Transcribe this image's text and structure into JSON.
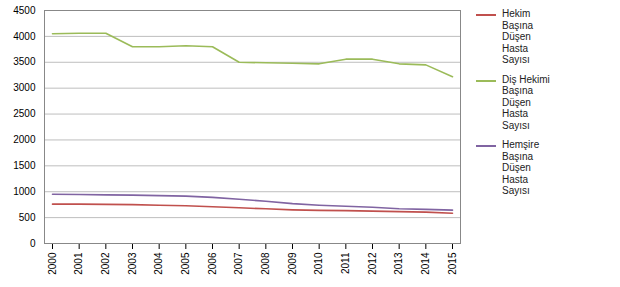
{
  "chart_data": {
    "type": "line",
    "x": [
      2000,
      2001,
      2002,
      2003,
      2004,
      2005,
      2006,
      2007,
      2008,
      2009,
      2010,
      2011,
      2012,
      2013,
      2014,
      2015
    ],
    "series": [
      {
        "name": "Hekim\nBaşına\nDüşen\nHasta\nSayısı",
        "color": "#c0504d",
        "values": [
          760,
          760,
          755,
          750,
          740,
          730,
          710,
          690,
          670,
          650,
          640,
          635,
          625,
          615,
          605,
          585
        ]
      },
      {
        "name": "Diş Hekimi\nBaşına\nDüşen\nHasta\nSayısı",
        "color": "#9bbb59",
        "values": [
          4050,
          4060,
          4060,
          3800,
          3800,
          3820,
          3800,
          3500,
          3490,
          3480,
          3470,
          3560,
          3560,
          3470,
          3450,
          3220
        ]
      },
      {
        "name": "Hemşire\nBaşına\nDüşen\nHasta\nSayısı",
        "color": "#8064a2",
        "values": [
          950,
          945,
          940,
          935,
          925,
          915,
          890,
          855,
          815,
          770,
          740,
          720,
          700,
          670,
          660,
          645
        ]
      }
    ],
    "xlim": [
      1999.7,
      2015.3
    ],
    "xticks": [
      2000,
      2001,
      2002,
      2003,
      2004,
      2005,
      2006,
      2007,
      2008,
      2009,
      2010,
      2011,
      2012,
      2013,
      2014,
      2015
    ],
    "ylim": [
      0,
      4500
    ],
    "yticks": [
      0,
      500,
      1000,
      1500,
      2000,
      2500,
      3000,
      3500,
      4000,
      4500
    ],
    "grid": true,
    "legend": "right"
  }
}
